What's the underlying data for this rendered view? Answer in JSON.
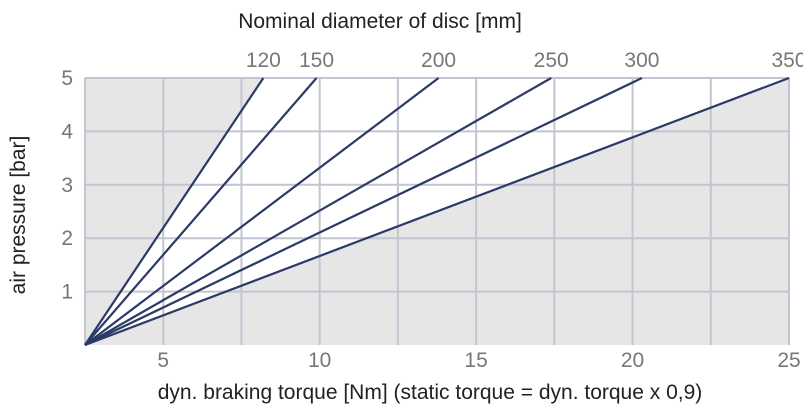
{
  "chart_data": {
    "type": "line",
    "top_axis_label": "Nominal diameter of disc [mm]",
    "xlabel": "dyn. braking torque [Nm] (static torque = dyn. torque x 0,9)",
    "ylabel": "air pressure [bar]",
    "xlim": [
      2.5,
      25
    ],
    "ylim": [
      0,
      5
    ],
    "x_ticks": [
      5,
      10,
      15,
      20,
      25
    ],
    "y_ticks": [
      1,
      2,
      3,
      4,
      5
    ],
    "x_grid": [
      2.5,
      5,
      7.5,
      10,
      12.5,
      15,
      17.5,
      20,
      22.5,
      25
    ],
    "grid": true,
    "line_color": "#2b3a66",
    "fill_color": "#e6e6e6",
    "grid_color": "#c4c4d2",
    "series": [
      {
        "name": "120",
        "x": [
          2.5,
          8.2
        ],
        "y": [
          0,
          5
        ]
      },
      {
        "name": "150",
        "x": [
          2.5,
          9.9
        ],
        "y": [
          0,
          5
        ]
      },
      {
        "name": "200",
        "x": [
          2.5,
          13.8
        ],
        "y": [
          0,
          5
        ]
      },
      {
        "name": "250",
        "x": [
          2.5,
          17.4
        ],
        "y": [
          0,
          5
        ]
      },
      {
        "name": "300",
        "x": [
          2.5,
          20.3
        ],
        "y": [
          0,
          5
        ]
      },
      {
        "name": "350",
        "x": [
          2.5,
          25
        ],
        "y": [
          0,
          5
        ]
      }
    ]
  }
}
